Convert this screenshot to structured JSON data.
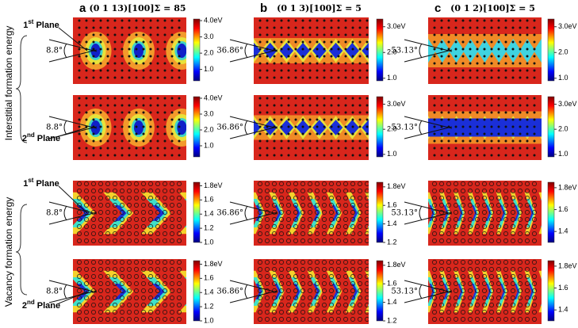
{
  "row_labels": [
    "Interstitial formation energy",
    "Vacancy formation energy"
  ],
  "columns": [
    {
      "letter": "a",
      "title": "(0 1 13)[100]Σ = 85"
    },
    {
      "letter": "b",
      "title": "(0 1 3)[100]Σ = 5"
    },
    {
      "letter": "c",
      "title": "(0 1 2)[100]Σ = 5"
    }
  ],
  "panels": [
    {
      "angle": "8.8°",
      "plane": {
        "ordinal": "1",
        "suffix": "st",
        "text": "Plane"
      },
      "clim": [
        0.3,
        4.1
      ],
      "ticks": [
        {
          "value": 4.0,
          "label": "4.0eV"
        },
        {
          "value": 3.0,
          "label": "3.0"
        },
        {
          "value": 2.0,
          "label": "2.0"
        },
        {
          "value": 1.0,
          "label": "1.0"
        }
      ]
    },
    {
      "angle": "36.86°",
      "clim": [
        0.9,
        3.3
      ],
      "ticks": [
        {
          "value": 3.0,
          "label": "3.0eV"
        },
        {
          "value": 2.0,
          "label": "2.0"
        },
        {
          "value": 1.0,
          "label": "1.0"
        }
      ]
    },
    {
      "angle": "53.13°",
      "clim": [
        0.9,
        3.3
      ],
      "ticks": [
        {
          "value": 3.0,
          "label": "3.0eV"
        },
        {
          "value": 2.0,
          "label": "2.0"
        },
        {
          "value": 1.0,
          "label": "1.0"
        }
      ]
    },
    {
      "angle": "8.8°",
      "plane": {
        "ordinal": "2",
        "suffix": "nd",
        "text": "Plane"
      },
      "clim": [
        0.3,
        4.1
      ],
      "ticks": [
        {
          "value": 4.0,
          "label": "4.0eV"
        },
        {
          "value": 3.0,
          "label": "3.0"
        },
        {
          "value": 2.0,
          "label": "2.0"
        },
        {
          "value": 1.0,
          "label": "1.0"
        }
      ]
    },
    {
      "angle": "36.86°",
      "clim": [
        0.9,
        3.3
      ],
      "ticks": [
        {
          "value": 3.0,
          "label": "3.0eV"
        },
        {
          "value": 2.0,
          "label": "2.0"
        },
        {
          "value": 1.0,
          "label": "1.0"
        }
      ]
    },
    {
      "angle": "53.13°",
      "clim": [
        0.9,
        3.3
      ],
      "ticks": [
        {
          "value": 3.0,
          "label": "3.0eV"
        },
        {
          "value": 2.0,
          "label": "2.0"
        },
        {
          "value": 1.0,
          "label": "1.0"
        }
      ]
    },
    {
      "angle": "8.8°",
      "plane": {
        "ordinal": "1",
        "suffix": "st",
        "text": "Plane"
      },
      "clim": [
        1.0,
        1.85
      ],
      "ticks": [
        {
          "value": 1.8,
          "label": "1.8eV"
        },
        {
          "value": 1.6,
          "label": "1.6"
        },
        {
          "value": 1.4,
          "label": "1.4"
        },
        {
          "value": 1.2,
          "label": "1.2"
        },
        {
          "value": 1.0,
          "label": "1.0"
        }
      ]
    },
    {
      "angle": "36.86°",
      "clim": [
        1.2,
        1.85
      ],
      "ticks": [
        {
          "value": 1.8,
          "label": "1.8eV"
        },
        {
          "value": 1.6,
          "label": "1.6"
        },
        {
          "value": 1.4,
          "label": "1.4"
        },
        {
          "value": 1.2,
          "label": "1.2"
        }
      ]
    },
    {
      "angle": "53.13°",
      "clim": [
        1.3,
        1.85
      ],
      "ticks": [
        {
          "value": 1.8,
          "label": "1.8eV"
        },
        {
          "value": 1.6,
          "label": "1.6"
        },
        {
          "value": 1.4,
          "label": "1.4"
        }
      ]
    },
    {
      "angle": "8.8°",
      "plane": {
        "ordinal": "2",
        "suffix": "nd",
        "text": "Plane"
      },
      "clim": [
        1.0,
        1.85
      ],
      "ticks": [
        {
          "value": 1.8,
          "label": "1.8eV"
        },
        {
          "value": 1.6,
          "label": "1.6"
        },
        {
          "value": 1.4,
          "label": "1.4"
        },
        {
          "value": 1.2,
          "label": "1.2"
        },
        {
          "value": 1.0,
          "label": "1.0"
        }
      ]
    },
    {
      "angle": "36.86°",
      "clim": [
        1.2,
        1.85
      ],
      "ticks": [
        {
          "value": 1.8,
          "label": "1.8eV"
        },
        {
          "value": 1.6,
          "label": "1.6"
        },
        {
          "value": 1.4,
          "label": "1.4"
        },
        {
          "value": 1.2,
          "label": "1.2"
        }
      ]
    },
    {
      "angle": "53.13°",
      "clim": [
        1.3,
        1.85
      ],
      "ticks": [
        {
          "value": 1.8,
          "label": "1.8eV"
        },
        {
          "value": 1.6,
          "label": "1.6"
        },
        {
          "value": 1.4,
          "label": "1.4"
        }
      ]
    }
  ]
}
